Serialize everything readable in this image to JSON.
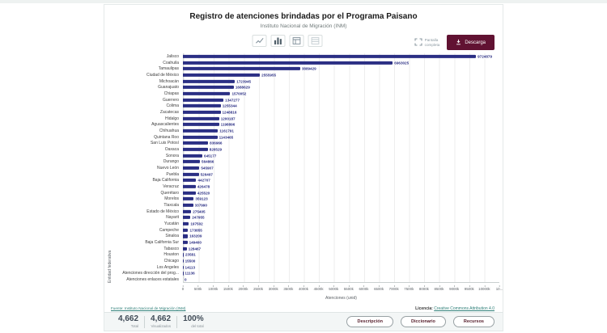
{
  "page": {
    "title": "Registro de atenciones brindadas por el Programa Paisano",
    "subtitle": "Instituto Nacional de Migración (INM)"
  },
  "toolbar": {
    "chart_type_icons": [
      "line-chart",
      "bar-chart",
      "pivot-table",
      "data-table"
    ],
    "fullscreen_label_line1": "Pantalla",
    "fullscreen_label_line2": "completa",
    "download_label": "Descarga"
  },
  "chart_data": {
    "type": "bar",
    "orientation": "horizontal",
    "title": "Registro de atenciones brindadas por el Programa Paisano",
    "xlabel": "Atenciones (unid)",
    "ylabel": "Entidad federativa",
    "xlim": [
      0,
      10500000
    ],
    "grid": true,
    "bar_color": "#2b2f84",
    "x_ticks": [
      "0",
      "500k",
      "1000k",
      "1500k",
      "2000k",
      "2500k",
      "3000k",
      "3500k",
      "4000k",
      "4500k",
      "5000k",
      "5500k",
      "6000k",
      "6500k",
      "7000k",
      "7500k",
      "8000k",
      "8500k",
      "9000k",
      "9500k",
      "10000k",
      "10..."
    ],
    "categories": [
      "Jalisco",
      "Coahuila",
      "Tamaulipas",
      "Ciudad de México",
      "Michoacán",
      "Guanajuato",
      "Chiapas",
      "Guerrero",
      "Colima",
      "Zacatecas",
      "Hidalgo",
      "Aguascalientes",
      "Chihuahua",
      "Quintana Roo",
      "San Luis Potosí",
      "Oaxaca",
      "Sonora",
      "Durango",
      "Nuevo León",
      "Puebla",
      "Baja California",
      "Veracruz",
      "Querétaro",
      "Morelos",
      "Tlaxcala",
      "Estado de México",
      "Nayarit",
      "Yucatán",
      "Campeche",
      "Sinaloa",
      "Baja California Sur",
      "Tabasco",
      "Houston",
      "Chicago",
      "Los Angeles",
      "Atenciones dirección del prog...",
      "Atenciones enlaces estatales"
    ],
    "values": [
      9724879,
      6963025,
      3889429,
      2555955,
      1723945,
      1688629,
      1570052,
      1347277,
      1255344,
      1248816,
      1200187,
      1198896,
      1161791,
      1143465,
      836966,
      826529,
      645177,
      564866,
      545907,
      526497,
      442707,
      426478,
      425520,
      359123,
      337990,
      275405,
      247955,
      197502,
      173855,
      163209,
      149400,
      128467,
      23581,
      15500,
      14113,
      11136,
      0
    ]
  },
  "footer": {
    "source_label": "Fuente: Instituto Nacional de Migración (INM)",
    "license_label": "Licencia:",
    "license_link": "Creative Commons Attribution 4.0"
  },
  "stats": [
    {
      "value": "4,662",
      "label": "Total"
    },
    {
      "value": "4,662",
      "label": "Visualizados"
    },
    {
      "value": "100%",
      "label": "del total"
    }
  ],
  "actions": {
    "description": "Descripción",
    "dictionary": "Diccionario",
    "resources": "Recursos"
  },
  "colors": {
    "accent": "#611232",
    "bar": "#2b2f84",
    "link": "#2e7f78",
    "strip_bg": "#f3f6f6"
  }
}
